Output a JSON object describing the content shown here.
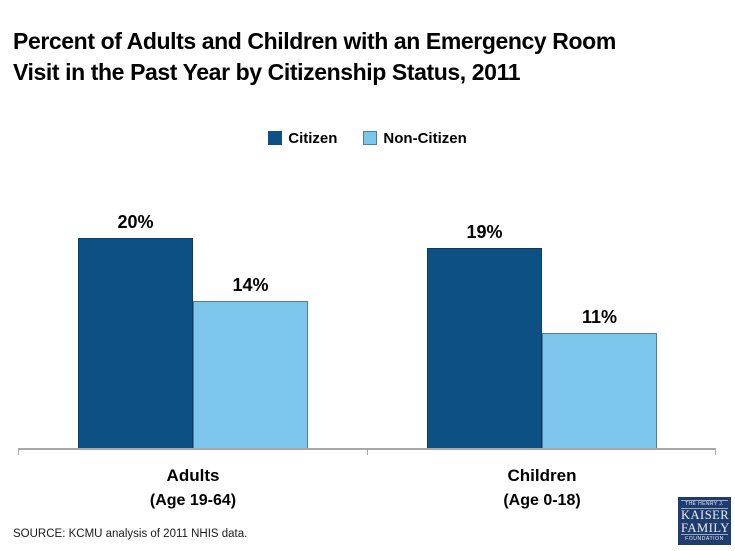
{
  "title": "Percent of Adults and Children with an Emergency Room Visit in the Past Year by Citizenship Status, 2011",
  "source": "SOURCE: KCMU analysis of 2011 NHIS data.",
  "colors": {
    "citizen": "#0D5083",
    "non_citizen": "#7CC6EC",
    "non_citizen_border": "#4F7CA6",
    "axis": "#A8A8A8",
    "logo_navy": "#1E3C6D"
  },
  "legend": {
    "items": [
      {
        "label": "Citizen"
      },
      {
        "label": "Non-Citizen"
      }
    ]
  },
  "chart_data": {
    "type": "bar",
    "title": "Percent of Adults and Children with an Emergency Room Visit in the Past Year by Citizenship Status, 2011",
    "categories": [
      "Adults",
      "Children"
    ],
    "category_sublabels": [
      "(Age 19-64)",
      "(Age 0-18)"
    ],
    "series": [
      {
        "name": "Citizen",
        "color": "#0D5083",
        "values": [
          20,
          19
        ],
        "labels": [
          "20%",
          "19%"
        ]
      },
      {
        "name": "Non-Citizen",
        "color": "#7CC6EC",
        "values": [
          14,
          11
        ],
        "labels": [
          "14%",
          "11%"
        ]
      }
    ],
    "ylabel": "",
    "xlabel": "",
    "ylim": [
      0,
      25
    ],
    "grid": false,
    "legend_position": "top"
  },
  "logo": {
    "line1": "THE HENRY J.",
    "line2": "KAISER",
    "line3": "FAMILY",
    "line4": "FOUNDATION"
  }
}
